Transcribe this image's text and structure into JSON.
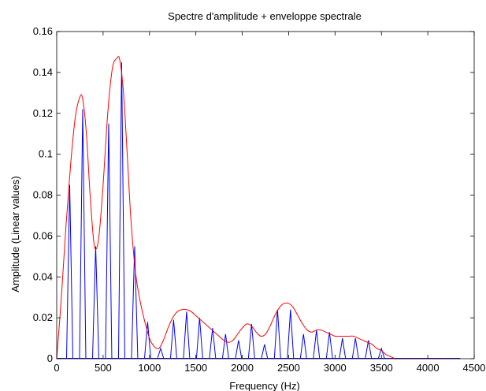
{
  "chart_data": {
    "type": "line",
    "title": "Spectre d'amplitude + enveloppe spectrale",
    "xlabel": "Frequency (Hz)",
    "ylabel": "Amplitude (Linear values)",
    "xlim": [
      0,
      4500
    ],
    "ylim": [
      0,
      0.16
    ],
    "xticks": [
      0,
      500,
      1000,
      1500,
      2000,
      2500,
      3000,
      3500,
      4000,
      4500
    ],
    "yticks": [
      0,
      0.02,
      0.04,
      0.06,
      0.08,
      0.1,
      0.12,
      0.14,
      0.16
    ],
    "xtick_labels": [
      "0",
      "500",
      "1000",
      "1500",
      "2000",
      "2500",
      "3000",
      "3500",
      "4000",
      "4500"
    ],
    "ytick_labels": [
      "0",
      "0.02",
      "0.04",
      "0.06",
      "0.08",
      "0.1",
      "0.12",
      "0.14",
      "0.16"
    ],
    "grid": false,
    "colors": {
      "spectrum": "#0000ff",
      "envelope": "#ff0000"
    },
    "series": [
      {
        "type": "stem",
        "x": [
          140,
          280,
          420,
          560,
          700,
          840,
          980,
          1120,
          1260,
          1400,
          1540,
          1680,
          1820,
          1960,
          2100,
          2240,
          2380,
          2520,
          2660,
          2800,
          2940,
          3080,
          3220,
          3360,
          3500
        ],
        "y": [
          0.085,
          0.122,
          0.055,
          0.115,
          0.145,
          0.055,
          0.018,
          0.005,
          0.019,
          0.023,
          0.02,
          0.015,
          0.012,
          0.009,
          0.017,
          0.007,
          0.024,
          0.024,
          0.012,
          0.014,
          0.013,
          0.01,
          0.01,
          0.009,
          0.005
        ]
      },
      {
        "type": "line",
        "x": [
          0,
          50,
          100,
          150,
          200,
          250,
          280,
          320,
          360,
          400,
          430,
          460,
          500,
          550,
          600,
          650,
          680,
          720,
          760,
          800,
          850,
          900,
          950,
          1000,
          1050,
          1100,
          1150,
          1200,
          1250,
          1300,
          1350,
          1400,
          1450,
          1500,
          1550,
          1600,
          1650,
          1700,
          1750,
          1800,
          1850,
          1900,
          1950,
          2000,
          2050,
          2100,
          2150,
          2200,
          2250,
          2300,
          2350,
          2400,
          2450,
          2500,
          2550,
          2600,
          2650,
          2700,
          2750,
          2800,
          2850,
          2900,
          2950,
          3000,
          3050,
          3100,
          3150,
          3200,
          3250,
          3300,
          3350,
          3400,
          3450,
          3500,
          3550,
          3600,
          3650,
          3700,
          4350
        ],
        "y": [
          0,
          0.03,
          0.065,
          0.095,
          0.118,
          0.128,
          0.127,
          0.11,
          0.08,
          0.057,
          0.054,
          0.062,
          0.085,
          0.12,
          0.142,
          0.147,
          0.146,
          0.13,
          0.1,
          0.068,
          0.042,
          0.028,
          0.018,
          0.01,
          0.006,
          0.005,
          0.009,
          0.015,
          0.02,
          0.023,
          0.024,
          0.024,
          0.023,
          0.021,
          0.019,
          0.017,
          0.015,
          0.013,
          0.011,
          0.009,
          0.008,
          0.009,
          0.012,
          0.015,
          0.017,
          0.016,
          0.013,
          0.011,
          0.012,
          0.016,
          0.021,
          0.025,
          0.027,
          0.027,
          0.025,
          0.021,
          0.017,
          0.014,
          0.013,
          0.014,
          0.014,
          0.013,
          0.012,
          0.011,
          0.011,
          0.011,
          0.011,
          0.011,
          0.01,
          0.009,
          0.008,
          0.007,
          0.005,
          0.004,
          0.002,
          0.001,
          0.0,
          0.0,
          0.0
        ]
      }
    ]
  }
}
